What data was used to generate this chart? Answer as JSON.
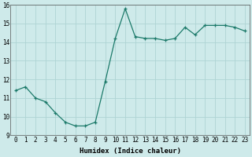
{
  "x": [
    0,
    1,
    2,
    3,
    4,
    5,
    6,
    7,
    8,
    9,
    10,
    11,
    12,
    13,
    14,
    15,
    16,
    17,
    18,
    19,
    20,
    21,
    22,
    23
  ],
  "y": [
    11.4,
    11.6,
    11.0,
    10.8,
    10.2,
    9.7,
    9.5,
    9.5,
    9.7,
    11.9,
    14.2,
    15.8,
    14.3,
    14.2,
    14.2,
    14.1,
    14.2,
    14.8,
    14.4,
    14.9,
    14.9,
    14.9,
    14.8,
    14.6
  ],
  "xlabel": "Humidex (Indice chaleur)",
  "line_color": "#1c7a6a",
  "marker_color": "#1c7a6a",
  "bg_color": "#ceeaea",
  "grid_color": "#aed4d4",
  "ylim": [
    9,
    16
  ],
  "xlim_min": -0.5,
  "xlim_max": 23.5,
  "yticks": [
    9,
    10,
    11,
    12,
    13,
    14,
    15,
    16
  ],
  "xticks": [
    0,
    1,
    2,
    3,
    4,
    5,
    6,
    7,
    8,
    9,
    10,
    11,
    12,
    13,
    14,
    15,
    16,
    17,
    18,
    19,
    20,
    21,
    22,
    23
  ],
  "xlabel_fontsize": 6.5,
  "tick_fontsize": 5.5
}
